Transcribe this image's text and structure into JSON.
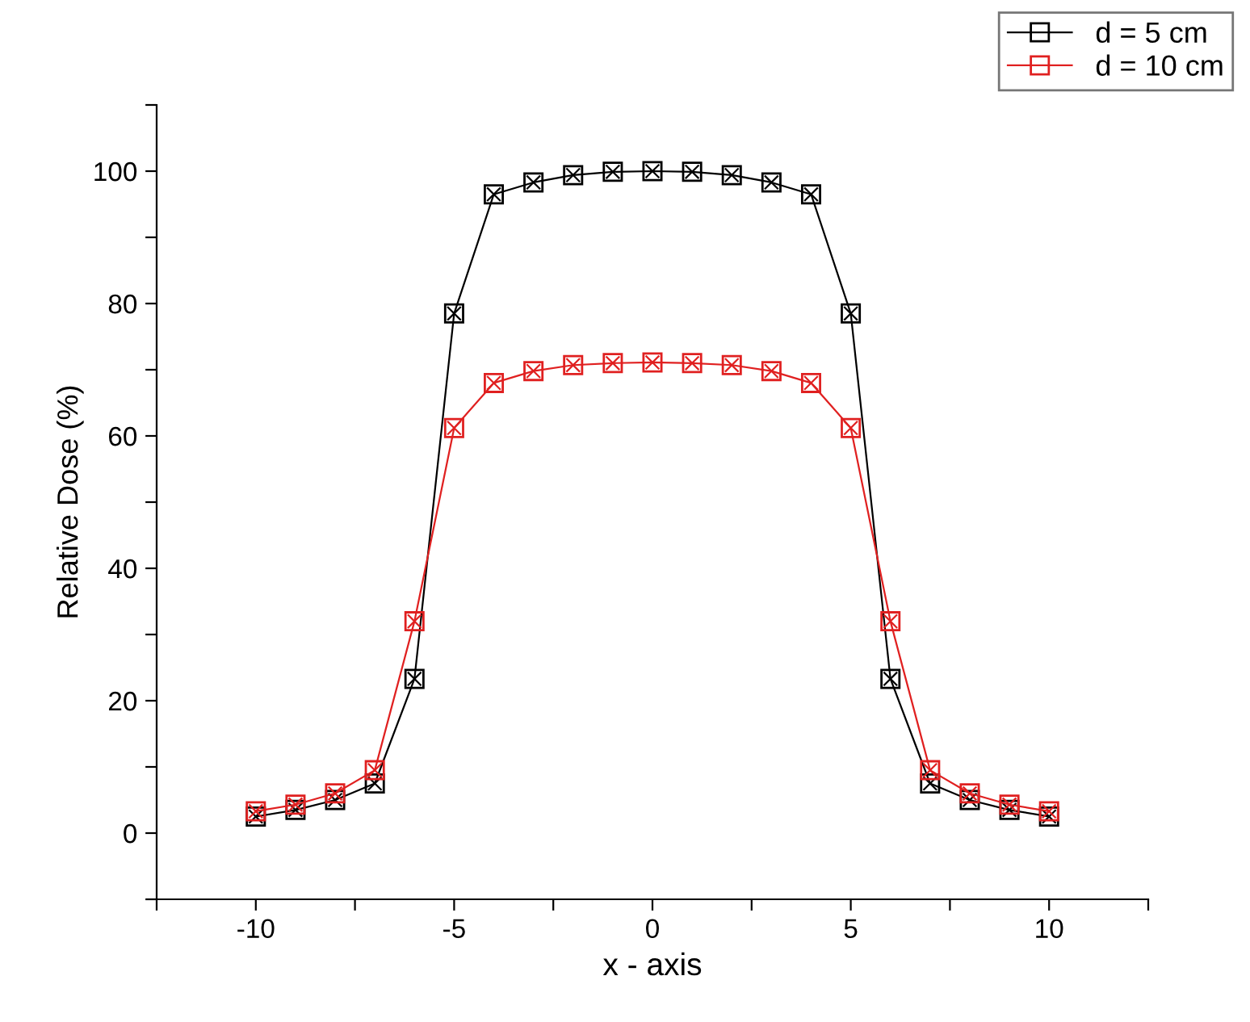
{
  "chart_data": {
    "type": "line",
    "xlabel": "x - axis",
    "ylabel": "Relative Dose (%)",
    "x": [
      -10,
      -9,
      -8,
      -7,
      -6,
      -5,
      -4,
      -3,
      -2,
      -1,
      0,
      1,
      2,
      3,
      4,
      5,
      6,
      7,
      8,
      9,
      10
    ],
    "series": [
      {
        "name": "d = 5 cm",
        "color": "#000000",
        "values": [
          2.5,
          3.5,
          5,
          7.5,
          23.3,
          78.5,
          96.5,
          98.3,
          99.4,
          99.9,
          100,
          99.9,
          99.4,
          98.3,
          96.5,
          78.5,
          23.3,
          7.5,
          5,
          3.5,
          2.5
        ]
      },
      {
        "name": "d = 10 cm",
        "color": "#e02020",
        "values": [
          3.3,
          4.3,
          6,
          9.5,
          32,
          61.2,
          68,
          69.8,
          70.7,
          71,
          71.1,
          71,
          70.7,
          69.8,
          68,
          61.2,
          32,
          9.5,
          6,
          4.3,
          3.3
        ]
      }
    ],
    "xlim": [
      -12.5,
      12.5
    ],
    "xticks": [
      {
        "value": -12.5,
        "label": null
      },
      -10,
      {
        "value": -7.5,
        "label": null
      },
      -5,
      {
        "value": -2.5,
        "label": null
      },
      0,
      {
        "value": 2.5,
        "label": null
      },
      5,
      {
        "value": 7.5,
        "label": null
      },
      10,
      {
        "value": 12.5,
        "label": null
      }
    ],
    "ylim": [
      -10,
      110
    ],
    "yticks": [
      {
        "value": -10,
        "label": null
      },
      0,
      {
        "value": 10,
        "label": null
      },
      20,
      {
        "value": 30,
        "label": null
      },
      40,
      {
        "value": 50,
        "label": null
      },
      60,
      {
        "value": 70,
        "label": null
      },
      80,
      {
        "value": 90,
        "label": null
      },
      100,
      {
        "value": 110,
        "label": null
      }
    ],
    "marker": "square",
    "line_style": "solid",
    "legend": "top right",
    "grid": false
  }
}
